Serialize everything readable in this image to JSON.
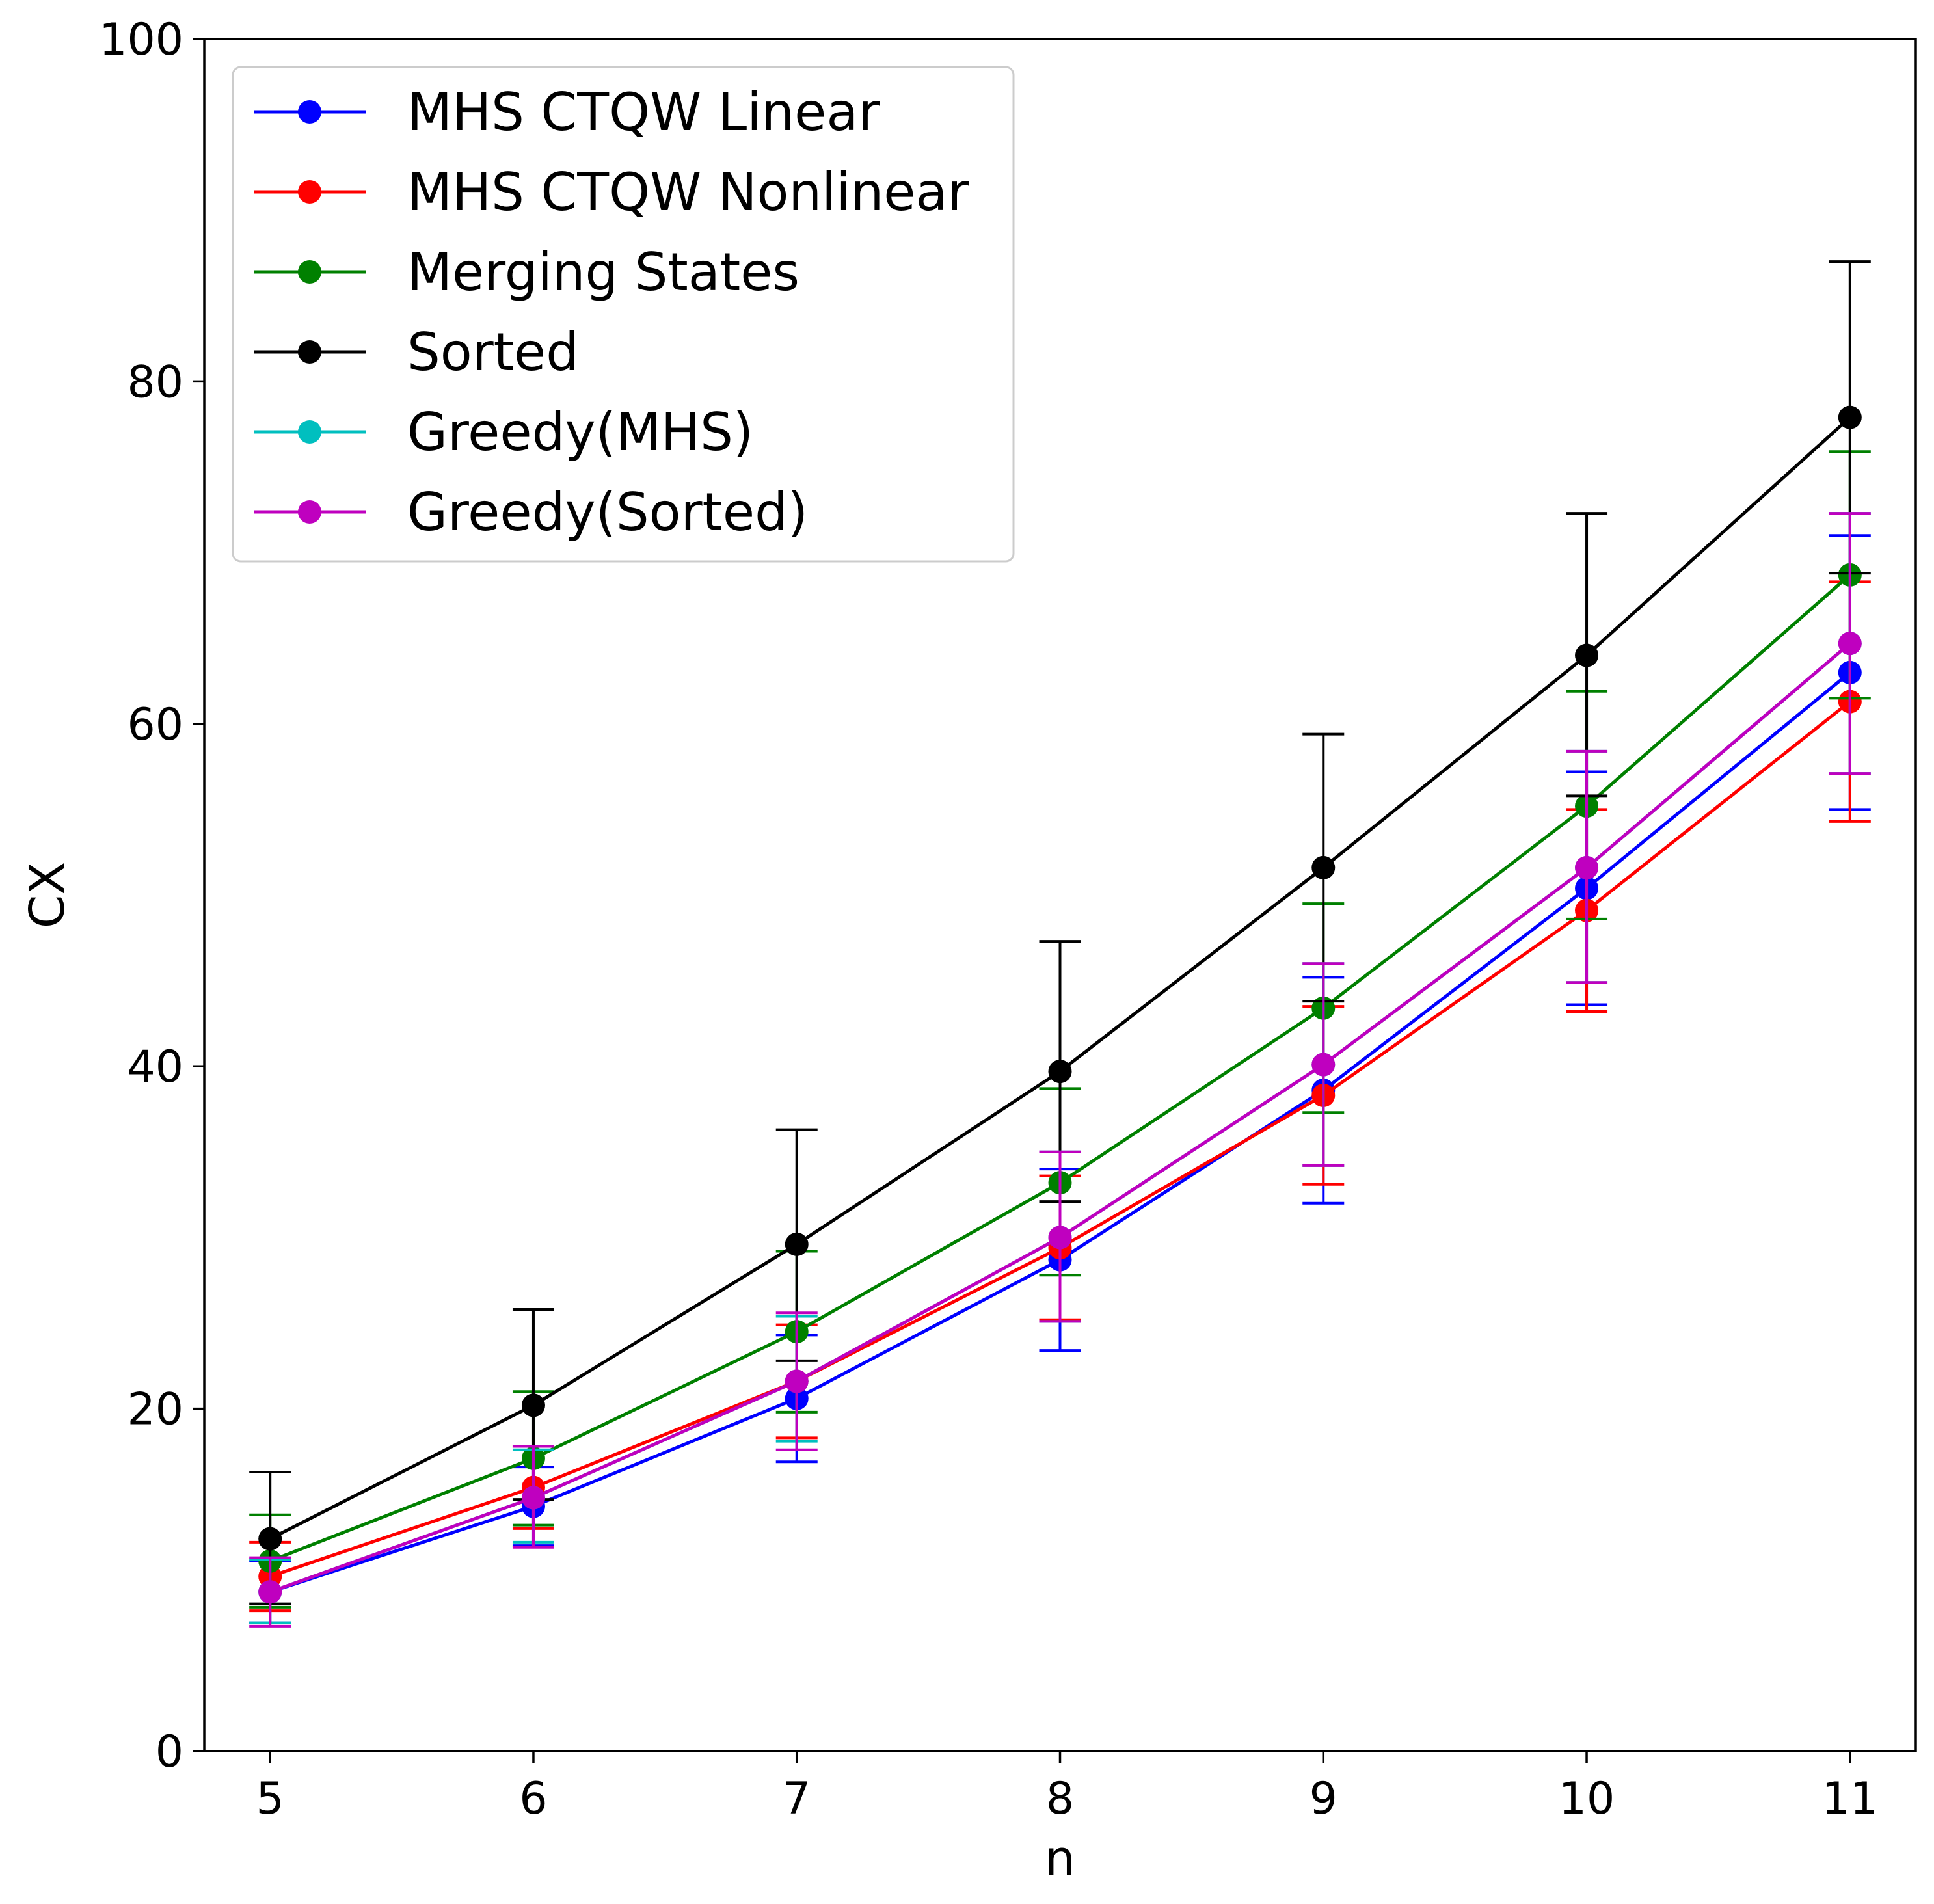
{
  "chart_data": {
    "type": "line",
    "xlabel": "n",
    "ylabel": "CX",
    "xlim": [
      4.75,
      11.25
    ],
    "ylim": [
      0,
      100
    ],
    "xticks": [
      5,
      6,
      7,
      8,
      9,
      10,
      11
    ],
    "yticks": [
      0,
      20,
      40,
      60,
      80,
      100
    ],
    "grid": false,
    "legend_position": "top-left",
    "x": [
      5,
      6,
      7,
      8,
      9,
      10,
      11
    ],
    "series": [
      {
        "name": "MHS CTQW Linear",
        "color": "#0000ff",
        "values": [
          9.3,
          14.3,
          20.6,
          28.7,
          38.6,
          50.4,
          63.0
        ],
        "err_low": [
          7.5,
          12.0,
          16.9,
          23.4,
          32.0,
          43.6,
          55.0
        ],
        "err_high": [
          11.1,
          16.6,
          24.3,
          34.0,
          45.2,
          57.2,
          71.0
        ]
      },
      {
        "name": "MHS CTQW Nonlinear",
        "color": "#ff0000",
        "values": [
          10.2,
          15.4,
          21.6,
          29.4,
          38.3,
          49.1,
          61.3
        ],
        "err_low": [
          8.2,
          13.0,
          18.3,
          25.2,
          33.1,
          43.2,
          54.3
        ],
        "err_high": [
          12.2,
          17.8,
          24.9,
          33.6,
          43.5,
          55.0,
          68.3
        ]
      },
      {
        "name": "Merging States",
        "color": "#008000",
        "values": [
          11.1,
          17.1,
          24.5,
          33.2,
          43.4,
          55.2,
          68.7
        ],
        "err_low": [
          8.4,
          13.2,
          19.8,
          27.8,
          37.3,
          48.6,
          61.5
        ],
        "err_high": [
          13.8,
          21.0,
          29.2,
          38.7,
          49.5,
          61.9,
          75.9
        ]
      },
      {
        "name": "Sorted",
        "color": "#000000",
        "values": [
          12.4,
          20.2,
          29.6,
          39.7,
          51.6,
          64.0,
          77.9
        ],
        "err_low": [
          8.6,
          14.7,
          22.8,
          32.1,
          43.8,
          55.8,
          68.8
        ],
        "err_high": [
          16.3,
          25.8,
          36.3,
          47.3,
          59.4,
          72.3,
          87.0
        ]
      },
      {
        "name": "Greedy(MHS)",
        "color": "#00bfbf",
        "values": [
          9.3,
          14.8,
          21.6,
          30.0,
          40.1,
          51.6,
          64.7
        ],
        "err_low": [
          7.5,
          12.2,
          18.1,
          25.1,
          34.2,
          44.9,
          57.1
        ],
        "err_high": [
          11.2,
          17.6,
          25.4,
          35.0,
          46.0,
          58.4,
          72.3
        ]
      },
      {
        "name": "Greedy(Sorted)",
        "color": "#bf00bf",
        "values": [
          9.3,
          14.8,
          21.6,
          30.0,
          40.1,
          51.6,
          64.7
        ],
        "err_low": [
          7.3,
          11.9,
          17.6,
          25.1,
          34.2,
          44.9,
          57.1
        ],
        "err_high": [
          11.3,
          17.8,
          25.6,
          35.0,
          46.0,
          58.4,
          72.3
        ]
      }
    ]
  }
}
